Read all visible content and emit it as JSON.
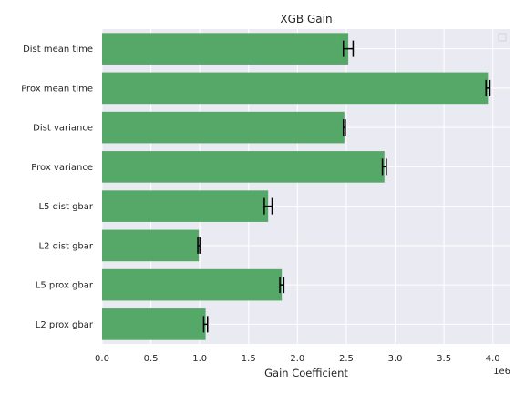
{
  "chart_data": {
    "type": "bar",
    "orientation": "horizontal",
    "title": "XGB Gain",
    "xlabel": "Gain Coefficient",
    "ylabel": "",
    "x_offset_label": "1e6",
    "xlim": [
      0,
      4.18
    ],
    "x_ticks": [
      0.0,
      0.5,
      1.0,
      1.5,
      2.0,
      2.5,
      3.0,
      3.5,
      4.0
    ],
    "x_tick_labels": [
      "0.0",
      "0.5",
      "1.0",
      "1.5",
      "2.0",
      "2.5",
      "3.0",
      "3.5",
      "4.0"
    ],
    "categories": [
      "Dist mean time",
      "Prox mean time",
      "Dist variance",
      "Prox variance",
      "L5 dist gbar",
      "L2 dist gbar",
      "L5 prox gbar",
      "L2 prox gbar"
    ],
    "values": [
      2.52,
      3.95,
      2.48,
      2.89,
      1.7,
      0.99,
      1.84,
      1.06
    ],
    "errors": [
      0.05,
      0.02,
      0.01,
      0.02,
      0.04,
      0.01,
      0.02,
      0.02
    ],
    "bar_color": "#55a868",
    "error_color": "#000000",
    "background_color": "#eaeaf2",
    "grid_color": "#ffffff",
    "grid": true,
    "legend_placement": "upper right",
    "legend_entries": []
  }
}
